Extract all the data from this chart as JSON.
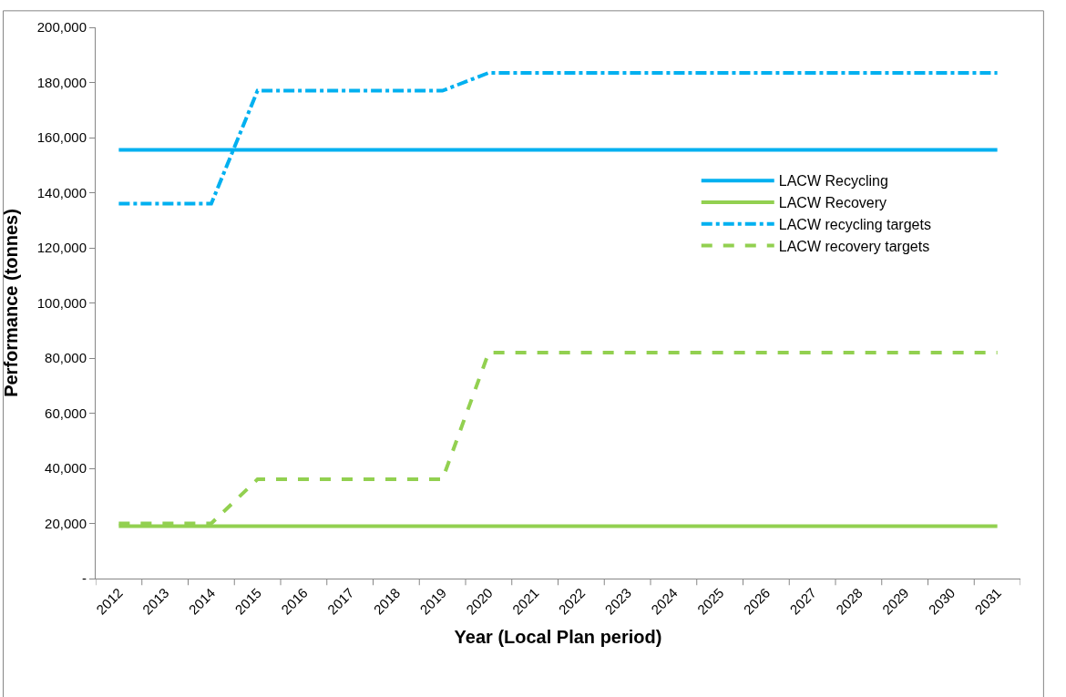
{
  "chart_data": {
    "type": "line",
    "xlabel": "Year (Local Plan period)",
    "ylabel": "Performance (tonnes)",
    "categories": [
      "2012",
      "2013",
      "2014",
      "2015",
      "2016",
      "2017",
      "2018",
      "2019",
      "2020",
      "2021",
      "2022",
      "2023",
      "2024",
      "2025",
      "2026",
      "2027",
      "2028",
      "2029",
      "2030",
      "2031"
    ],
    "series": [
      {
        "name": "LACW Recycling",
        "color": "#00b0f0",
        "line_style": "solid",
        "values": [
          155500,
          155500,
          155500,
          155500,
          155500,
          155500,
          155500,
          155500,
          155500,
          155500,
          155500,
          155500,
          155500,
          155500,
          155500,
          155500,
          155500,
          155500,
          155500,
          155500
        ]
      },
      {
        "name": "LACW Recovery",
        "color": "#92d050",
        "line_style": "solid",
        "values": [
          19000,
          19000,
          19000,
          19000,
          19000,
          19000,
          19000,
          19000,
          19000,
          19000,
          19000,
          19000,
          19000,
          19000,
          19000,
          19000,
          19000,
          19000,
          19000,
          19000
        ]
      },
      {
        "name": "LACW recycling targets",
        "color": "#00b0f0",
        "line_style": "dashdot",
        "values": [
          136000,
          136000,
          136000,
          177000,
          177000,
          177000,
          177000,
          177000,
          183500,
          183500,
          183500,
          183500,
          183500,
          183500,
          183500,
          183500,
          183500,
          183500,
          183500,
          183500
        ]
      },
      {
        "name": "LACW recovery targets",
        "color": "#92d050",
        "line_style": "dashed",
        "values": [
          20000,
          20000,
          20000,
          36000,
          36000,
          36000,
          36000,
          36000,
          82000,
          82000,
          82000,
          82000,
          82000,
          82000,
          82000,
          82000,
          82000,
          82000,
          82000,
          82000
        ]
      }
    ],
    "ylim": [
      0,
      200000
    ],
    "yticks": [
      {
        "value": 0,
        "label": "-"
      },
      {
        "value": 20000,
        "label": "20,000"
      },
      {
        "value": 40000,
        "label": "40,000"
      },
      {
        "value": 60000,
        "label": "60,000"
      },
      {
        "value": 80000,
        "label": "80,000"
      },
      {
        "value": 100000,
        "label": "100,000"
      },
      {
        "value": 120000,
        "label": "120,000"
      },
      {
        "value": 140000,
        "label": "140,000"
      },
      {
        "value": 160000,
        "label": "160,000"
      },
      {
        "value": 180000,
        "label": "180,000"
      },
      {
        "value": 200000,
        "label": "200,000"
      }
    ],
    "legend": "right",
    "marker": "none"
  }
}
